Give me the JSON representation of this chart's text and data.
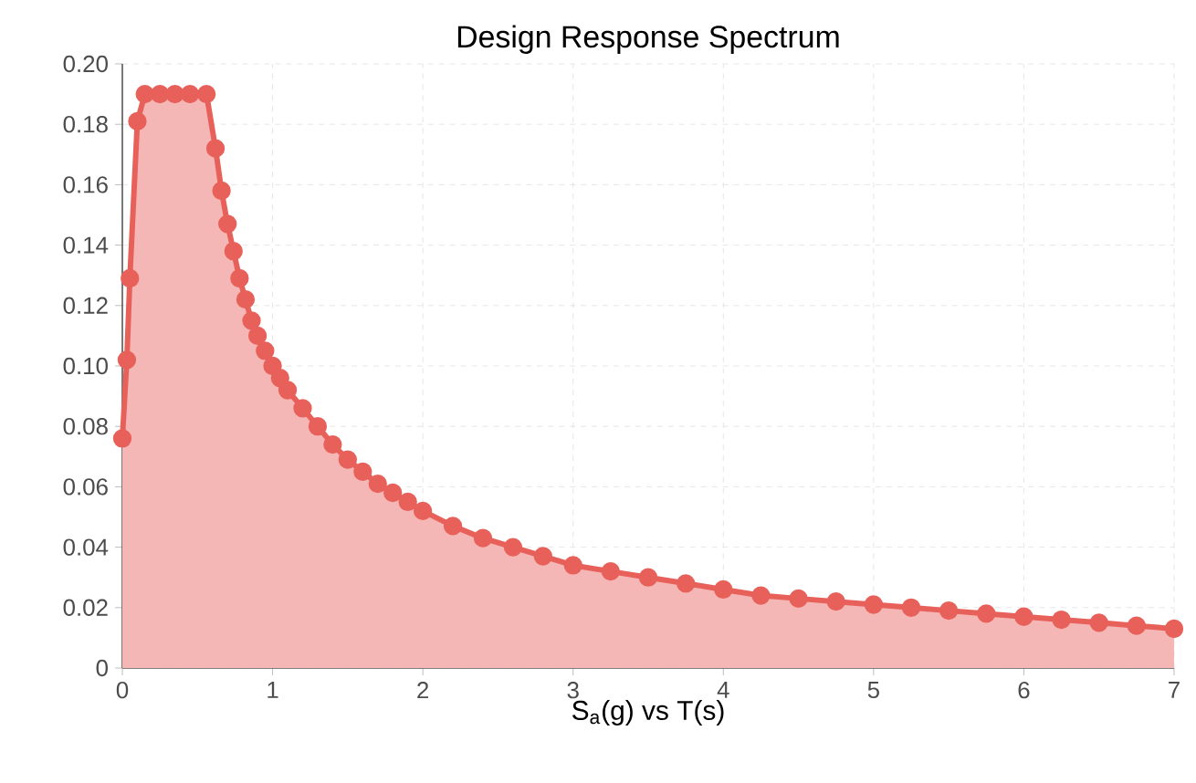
{
  "chart_data": {
    "type": "area",
    "title": "Design Response Spectrum",
    "xlabel": "S$_{a}$(g) vs T(s)",
    "marker": "circle",
    "grid": true,
    "xlim": [
      0,
      7
    ],
    "xticks": [
      0,
      1,
      2,
      3,
      4,
      5,
      6,
      7
    ],
    "ylim": [
      0,
      0.2
    ],
    "yticks": [
      0,
      {
        "value": 0.02,
        "label": "0.02"
      },
      {
        "value": 0.04,
        "label": "0.04"
      },
      {
        "value": 0.06,
        "label": "0.06"
      },
      {
        "value": 0.08,
        "label": "0.08"
      },
      {
        "value": 0.1,
        "label": "0.10"
      },
      {
        "value": 0.12,
        "label": "0.12"
      },
      {
        "value": 0.14,
        "label": "0.14"
      },
      {
        "value": 0.16,
        "label": "0.16"
      },
      {
        "value": 0.18,
        "label": "0.18"
      },
      {
        "value": 0.2,
        "label": "0.20"
      }
    ],
    "series": [
      {
        "color": "#e8605a",
        "x": [
          0,
          0.03,
          0.05,
          0.1,
          0.15,
          0.25,
          0.35,
          0.45,
          0.56,
          0.62,
          0.66,
          0.7,
          0.74,
          0.78,
          0.82,
          0.86,
          0.9,
          0.95,
          1.0,
          1.05,
          1.1,
          1.2,
          1.3,
          1.4,
          1.5,
          1.6,
          1.7,
          1.8,
          1.9,
          2.0,
          2.2,
          2.4,
          2.6,
          2.8,
          3.0,
          3.25,
          3.5,
          3.75,
          4.0,
          4.25,
          4.5,
          4.75,
          5.0,
          5.25,
          5.5,
          5.75,
          6.0,
          6.25,
          6.5,
          6.75,
          7.0
        ],
        "values": [
          0.076,
          0.102,
          0.129,
          0.181,
          0.19,
          0.19,
          0.19,
          0.19,
          0.19,
          0.172,
          0.158,
          0.147,
          0.138,
          0.129,
          0.122,
          0.115,
          0.11,
          0.105,
          0.1,
          0.096,
          0.092,
          0.086,
          0.08,
          0.074,
          0.069,
          0.065,
          0.061,
          0.058,
          0.055,
          0.052,
          0.047,
          0.043,
          0.04,
          0.037,
          0.034,
          0.032,
          0.03,
          0.028,
          0.026,
          0.024,
          0.023,
          0.022,
          0.021,
          0.02,
          0.019,
          0.018,
          0.017,
          0.016,
          0.015,
          0.014,
          0.013
        ]
      }
    ]
  }
}
